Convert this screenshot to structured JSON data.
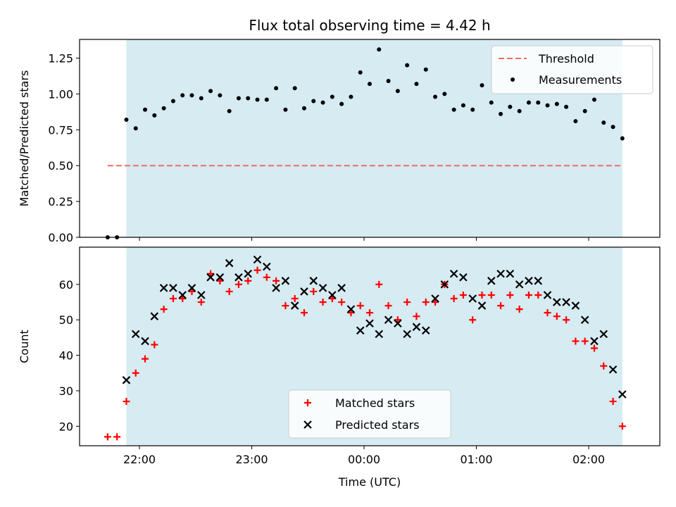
{
  "chart_data": [
    {
      "type": "scatter",
      "title": "Flux total observing time = 4.42 h",
      "xlabel": "",
      "ylabel": "Matched/Predicted stars",
      "ylim": [
        0,
        1.38
      ],
      "xlim": [
        "21:28",
        "02:38"
      ],
      "yticks": [
        "0.00",
        "0.25",
        "0.50",
        "0.75",
        "1.00",
        "1.25"
      ],
      "observing_window": [
        "21:53",
        "02:18"
      ],
      "threshold": {
        "name": "Threshold",
        "value": 0.5,
        "x_range": [
          "21:43",
          "02:18"
        ],
        "color": "#f26a6a"
      },
      "series": [
        {
          "name": "Measurements",
          "color": "#000000",
          "x": [
            "21:43",
            "21:48",
            "21:53",
            "21:58",
            "22:03",
            "22:08",
            "22:13",
            "22:18",
            "22:23",
            "22:28",
            "22:33",
            "22:38",
            "22:43",
            "22:48",
            "22:53",
            "22:58",
            "23:03",
            "23:08",
            "23:13",
            "23:18",
            "23:23",
            "23:28",
            "23:33",
            "23:38",
            "23:43",
            "23:48",
            "23:53",
            "23:58",
            "00:03",
            "00:08",
            "00:13",
            "00:18",
            "00:23",
            "00:28",
            "00:33",
            "00:38",
            "00:43",
            "00:48",
            "00:53",
            "00:58",
            "01:03",
            "01:08",
            "01:13",
            "01:18",
            "01:23",
            "01:28",
            "01:33",
            "01:38",
            "01:43",
            "01:48",
            "01:53",
            "01:58",
            "02:03",
            "02:08",
            "02:13",
            "02:18"
          ],
          "y": [
            0.0,
            0.0,
            0.82,
            0.76,
            0.89,
            0.85,
            0.9,
            0.95,
            0.99,
            0.99,
            0.97,
            1.02,
            0.99,
            0.88,
            0.97,
            0.97,
            0.96,
            0.96,
            1.04,
            0.89,
            1.04,
            0.9,
            0.95,
            0.94,
            0.98,
            0.93,
            0.98,
            1.15,
            1.07,
            1.31,
            1.09,
            1.02,
            1.2,
            1.07,
            1.17,
            0.98,
            1.0,
            0.89,
            0.92,
            0.89,
            1.06,
            0.94,
            0.86,
            0.91,
            0.88,
            0.94,
            0.94,
            0.92,
            0.93,
            0.91,
            0.81,
            0.88,
            0.96,
            0.8,
            0.77,
            0.69
          ]
        }
      ],
      "legend": {
        "position": "top-right",
        "entries": [
          "Threshold",
          "Measurements"
        ]
      }
    },
    {
      "type": "scatter",
      "title": "",
      "xlabel": "Time (UTC)",
      "ylabel": "Count",
      "ylim": [
        14.5,
        70.5
      ],
      "xlim": [
        "21:28",
        "02:38"
      ],
      "yticks": [
        "20",
        "30",
        "40",
        "50",
        "60"
      ],
      "xticks": [
        "22:00",
        "23:00",
        "00:00",
        "01:00",
        "02:00"
      ],
      "observing_window": [
        "21:53",
        "02:18"
      ],
      "series": [
        {
          "name": "Matched stars",
          "color": "#ff0000",
          "marker": "plus",
          "x": [
            "21:43",
            "21:48",
            "21:53",
            "21:58",
            "22:03",
            "22:08",
            "22:13",
            "22:18",
            "22:23",
            "22:28",
            "22:33",
            "22:38",
            "22:43",
            "22:48",
            "22:53",
            "22:58",
            "23:03",
            "23:08",
            "23:13",
            "23:18",
            "23:23",
            "23:28",
            "23:33",
            "23:38",
            "23:43",
            "23:48",
            "23:53",
            "23:58",
            "00:03",
            "00:08",
            "00:13",
            "00:18",
            "00:23",
            "00:28",
            "00:33",
            "00:38",
            "00:43",
            "00:48",
            "00:53",
            "00:58",
            "01:03",
            "01:08",
            "01:13",
            "01:18",
            "01:23",
            "01:28",
            "01:33",
            "01:38",
            "01:43",
            "01:48",
            "01:53",
            "01:58",
            "02:03",
            "02:08",
            "02:13",
            "02:18"
          ],
          "y": [
            17,
            17,
            27,
            35,
            39,
            43,
            53,
            56,
            56,
            58,
            55,
            63,
            61,
            58,
            60,
            61,
            64,
            62,
            61,
            54,
            56,
            52,
            58,
            55,
            56,
            55,
            52,
            54,
            52,
            60,
            54,
            50,
            55,
            51,
            55,
            55,
            60,
            56,
            57,
            50,
            57,
            57,
            54,
            57,
            53,
            57,
            57,
            52,
            51,
            50,
            44,
            44,
            42,
            37,
            27,
            20
          ]
        },
        {
          "name": "Predicted stars",
          "color": "#000000",
          "marker": "x",
          "x": [
            "21:53",
            "21:58",
            "22:03",
            "22:08",
            "22:13",
            "22:18",
            "22:23",
            "22:28",
            "22:33",
            "22:38",
            "22:43",
            "22:48",
            "22:53",
            "22:58",
            "23:03",
            "23:08",
            "23:13",
            "23:18",
            "23:23",
            "23:28",
            "23:33",
            "23:38",
            "23:43",
            "23:48",
            "23:53",
            "23:58",
            "00:03",
            "00:08",
            "00:13",
            "00:18",
            "00:23",
            "00:28",
            "00:33",
            "00:38",
            "00:43",
            "00:48",
            "00:53",
            "00:58",
            "01:03",
            "01:08",
            "01:13",
            "01:18",
            "01:23",
            "01:28",
            "01:33",
            "01:38",
            "01:43",
            "01:48",
            "01:53",
            "01:58",
            "02:03",
            "02:08",
            "02:13",
            "02:18"
          ],
          "y": [
            33,
            46,
            44,
            51,
            59,
            59,
            57,
            59,
            57,
            62,
            62,
            66,
            62,
            63,
            67,
            65,
            59,
            61,
            54,
            58,
            61,
            59,
            57,
            59,
            53,
            47,
            49,
            46,
            50,
            49,
            46,
            48,
            47,
            56,
            60,
            63,
            62,
            56,
            54,
            61,
            63,
            63,
            60,
            61,
            61,
            57,
            55,
            55,
            54,
            50,
            44,
            46,
            36,
            29
          ]
        }
      ],
      "legend": {
        "position": "bottom-center",
        "entries": [
          "Matched stars",
          "Predicted stars"
        ]
      }
    }
  ]
}
